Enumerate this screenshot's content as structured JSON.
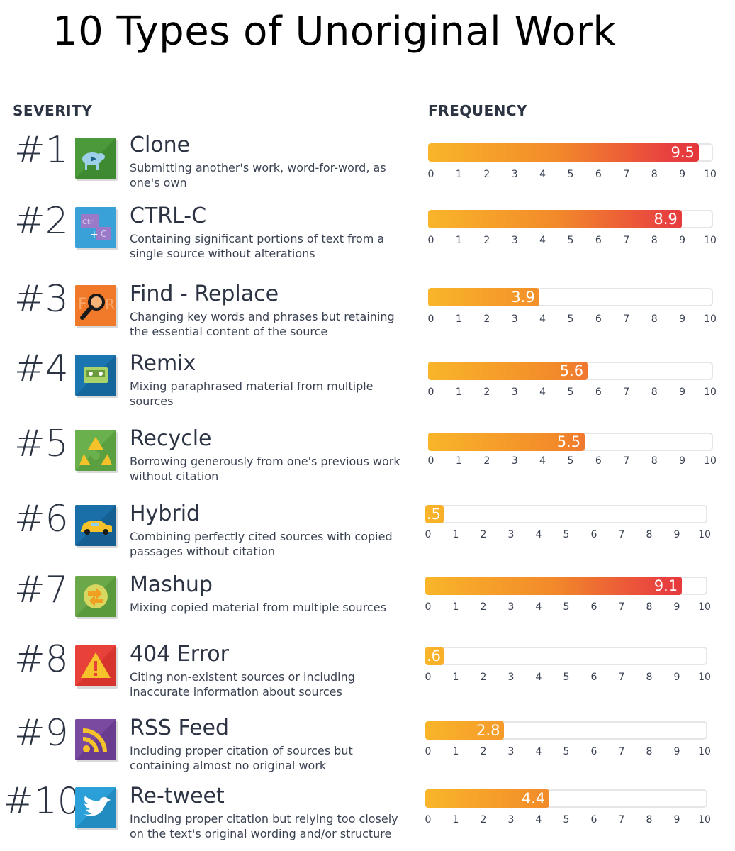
{
  "title": "10 Types of Unoriginal Work",
  "headers": {
    "severity": "SEVERITY",
    "frequency": "FREQUENCY"
  },
  "chart_data": {
    "type": "bar",
    "orientation": "horizontal",
    "title": "10 Types of Unoriginal Work",
    "xlabel": "FREQUENCY",
    "ylabel": "SEVERITY",
    "xlim": [
      0,
      10
    ],
    "ticks": [
      "0",
      "1",
      "2",
      "3",
      "4",
      "5",
      "6",
      "7",
      "8",
      "9",
      "10"
    ],
    "categories": [
      "Clone",
      "CTRL-C",
      "Find - Replace",
      "Remix",
      "Recycle",
      "Hybrid",
      "Mashup",
      "404 Error",
      "RSS Feed",
      "Re-tweet"
    ],
    "values": [
      9.5,
      8.9,
      3.9,
      5.6,
      5.5,
      0.5,
      9.1,
      0.6,
      2.8,
      4.4
    ]
  },
  "items": [
    {
      "rank": "#1",
      "name": "Clone",
      "desc": "Submitting another's work, word-for-word, as one's own",
      "value": 9.5,
      "label": "9.5",
      "icon": "sheep-icon"
    },
    {
      "rank": "#2",
      "name": "CTRL-C",
      "desc": "Containing significant portions of text from a single source without alterations",
      "value": 8.9,
      "label": "8.9",
      "icon": "ctrl-c-icon"
    },
    {
      "rank": "#3",
      "name": "Find - Replace",
      "desc": "Changing key words and phrases but retaining the essential content of the source",
      "value": 3.9,
      "label": "3.9",
      "icon": "magnifier-icon"
    },
    {
      "rank": "#4",
      "name": "Remix",
      "desc": "Mixing paraphrased material from multiple sources",
      "value": 5.6,
      "label": "5.6",
      "icon": "cassette-icon"
    },
    {
      "rank": "#5",
      "name": "Recycle",
      "desc": "Borrowing generously from one's previous work without citation",
      "value": 5.5,
      "label": "5.5",
      "icon": "recycle-icon"
    },
    {
      "rank": "#6",
      "name": "Hybrid",
      "desc": "Combining perfectly cited sources with copied passages without citation",
      "value": 0.5,
      "label": ".5",
      "icon": "car-icon"
    },
    {
      "rank": "#7",
      "name": "Mashup",
      "desc": "Mixing copied material from multiple sources",
      "value": 9.1,
      "label": "9.1",
      "icon": "arrows-icon"
    },
    {
      "rank": "#8",
      "name": "404 Error",
      "desc": "Citing non-existent sources or including inaccurate information about sources",
      "value": 0.6,
      "label": ".6",
      "icon": "warning-icon"
    },
    {
      "rank": "#9",
      "name": "RSS Feed",
      "desc": "Including proper citation of sources but containing almost no original work",
      "value": 2.8,
      "label": "2.8",
      "icon": "rss-icon"
    },
    {
      "rank": "#10",
      "name": "Re-tweet",
      "desc": "Including proper citation but relying too closely on the text's original wording and/or structure",
      "value": 4.4,
      "label": "4.4",
      "icon": "bird-icon"
    }
  ],
  "colors": {
    "bar_start": "#f9b52a",
    "bar_end": "#e23235",
    "track": "#e6e6e6"
  }
}
